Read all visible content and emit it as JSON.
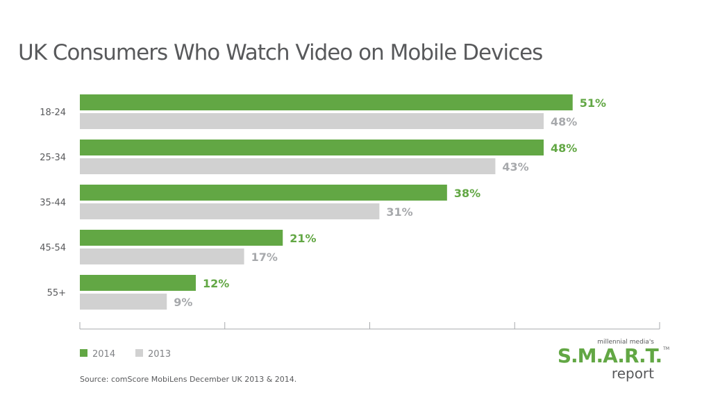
{
  "chart_data": {
    "type": "bar",
    "orientation": "horizontal",
    "title": "UK Consumers Who Watch Video on Mobile Devices",
    "categories": [
      "18-24",
      "25-34",
      "35-44",
      "45-54",
      "55+"
    ],
    "series": [
      {
        "name": "2014",
        "values": [
          51,
          48,
          38,
          21,
          12
        ],
        "labels": [
          "51%",
          "48%",
          "38%",
          "21%",
          "12%"
        ],
        "color": "#62a744"
      },
      {
        "name": "2013",
        "values": [
          48,
          43,
          31,
          17,
          9
        ],
        "labels": [
          "48%",
          "43%",
          "31%",
          "17%",
          "9%"
        ],
        "color": "#d1d1d1"
      }
    ],
    "xlim": [
      0,
      60
    ],
    "xticks": [
      0,
      15,
      30,
      45,
      60
    ],
    "grid": false,
    "legend": "bottom-left",
    "source": "Source: comScore MobiLens December UK 2013 & 2014."
  },
  "logo": {
    "tagline": "millennial media's",
    "name": "S.M.A.R.T.",
    "tm": "TM",
    "sub": "report"
  },
  "colors": {
    "text": "#58595b",
    "label2014": "#62a744",
    "label2013": "#a7a9ac"
  }
}
